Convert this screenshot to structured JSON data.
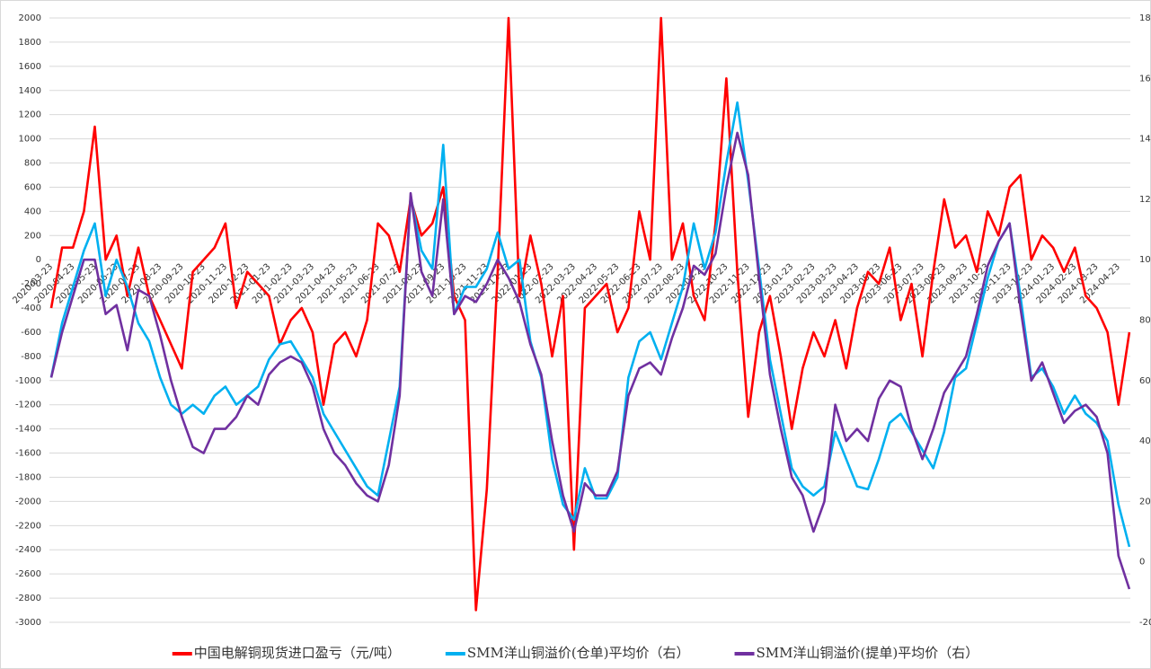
{
  "chart_data": {
    "type": "line",
    "categories": [
      "2020-03-23",
      null,
      "2020-04-23",
      null,
      "2020-05-23",
      null,
      "2020-06-23",
      null,
      "2020-07-23",
      null,
      "2020-08-23",
      null,
      "2020-09-23",
      null,
      "2020-10-23",
      null,
      "2020-11-23",
      null,
      "2020-12-23",
      null,
      "2021-01-23",
      null,
      "2021-02-23",
      null,
      "2021-03-23",
      null,
      "2021-04-23",
      null,
      "2021-05-23",
      null,
      "2021-06-23",
      null,
      "2021-07-23",
      null,
      "2021-08-23",
      null,
      "2021-09-23",
      null,
      "2021-10-23",
      null,
      "2021-11-23",
      null,
      "2021-12-23",
      null,
      "2022-01-23",
      null,
      "2022-02-23",
      null,
      "2022-03-23",
      null,
      "2022-04-23",
      null,
      "2022-05-23",
      null,
      "2022-06-23",
      null,
      "2022-07-23",
      null,
      "2022-08-23",
      null,
      "2022-09-23",
      null,
      "2022-10-23",
      null,
      "2022-11-23",
      null,
      "2022-12-23",
      null,
      "2023-01-23",
      null,
      "2023-02-23",
      null,
      "2023-03-23",
      null,
      "2023-04-23",
      null,
      "2023-05-23",
      null,
      "2023-06-23",
      null,
      "2023-07-23",
      null,
      "2023-08-23",
      null,
      "2023-09-23",
      null,
      "2023-10-23",
      null,
      "2023-11-23",
      null,
      "2023-12-23",
      null,
      "2024-01-23",
      null,
      "2024-02-23",
      null,
      "2024-03-23",
      null,
      "2024-04-23",
      null
    ],
    "series": [
      {
        "name": "中国电解铜现货进口盈亏（元/吨）",
        "color": "#ff0000",
        "axis": "y",
        "values": [
          -400,
          100,
          100,
          400,
          1100,
          0,
          200,
          -300,
          100,
          -300,
          -500,
          -700,
          -900,
          -100,
          0,
          100,
          300,
          -400,
          -100,
          -200,
          -300,
          -700,
          -500,
          -400,
          -600,
          -1200,
          -700,
          -600,
          -800,
          -500,
          300,
          200,
          -100,
          500,
          200,
          300,
          600,
          -300,
          -500,
          -2900,
          -1900,
          -100,
          2000,
          -300,
          200,
          -200,
          -800,
          -300,
          -2400,
          -400,
          -300,
          -200,
          -600,
          -400,
          400,
          0,
          2000,
          0,
          300,
          -300,
          -500,
          300,
          1500,
          -100,
          -1300,
          -600,
          -300,
          -800,
          -1400,
          -900,
          -600,
          -800,
          -500,
          -900,
          -400,
          -100,
          -200,
          100,
          -500,
          -200,
          -800,
          -100,
          500,
          100,
          200,
          -100,
          400,
          200,
          600,
          700,
          0,
          200,
          100,
          -100,
          100,
          -300,
          -400,
          -600,
          -1200,
          -600
        ]
      },
      {
        "name": "SMM洋山铜溢价(仓单)平均价（右）",
        "color": "#00b0f0",
        "axis": "y2",
        "values": [
          61,
          79,
          91,
          103,
          112,
          88,
          100,
          91,
          79,
          73,
          61,
          52,
          49,
          52,
          49,
          55,
          58,
          52,
          55,
          58,
          67,
          72,
          73,
          67,
          61,
          49,
          43,
          37,
          31,
          25,
          22,
          40,
          58,
          121,
          103,
          97,
          138,
          82,
          91,
          91,
          97,
          109,
          97,
          100,
          73,
          61,
          34,
          19,
          14,
          31,
          21,
          21,
          28,
          61,
          73,
          76,
          67,
          79,
          91,
          112,
          97,
          109,
          132,
          152,
          126,
          97,
          67,
          49,
          31,
          25,
          22,
          25,
          43,
          34,
          25,
          24,
          34,
          46,
          49,
          43,
          37,
          31,
          43,
          61,
          64,
          79,
          94,
          106,
          112,
          88,
          61,
          64,
          58,
          49,
          55,
          49,
          46,
          40,
          19,
          5
        ]
      },
      {
        "name": "SMM洋山铜溢价(提单)平均价（右）",
        "color": "#7030a0",
        "axis": "y2",
        "values": [
          61,
          76,
          88,
          100,
          100,
          82,
          85,
          70,
          90,
          88,
          75,
          60,
          48,
          38,
          36,
          44,
          44,
          48,
          55,
          52,
          62,
          66,
          68,
          66,
          58,
          44,
          36,
          32,
          26,
          22,
          20,
          32,
          55,
          122,
          96,
          88,
          120,
          82,
          88,
          86,
          92,
          100,
          94,
          86,
          72,
          62,
          40,
          22,
          10,
          26,
          22,
          22,
          30,
          55,
          64,
          66,
          62,
          74,
          84,
          98,
          95,
          102,
          124,
          142,
          128,
          94,
          62,
          44,
          28,
          22,
          10,
          20,
          52,
          40,
          44,
          40,
          54,
          60,
          58,
          44,
          34,
          44,
          56,
          62,
          68,
          82,
          98,
          106,
          112,
          84,
          60,
          66,
          56,
          46,
          50,
          52,
          48,
          36,
          2,
          -9
        ]
      }
    ],
    "ylim": [
      -3000,
      2000
    ],
    "yticks": [
      -3000,
      -2800,
      -2600,
      -2400,
      -2200,
      -2000,
      -1800,
      -1600,
      -1400,
      -1200,
      -1000,
      -800,
      -600,
      -400,
      -200,
      0,
      200,
      400,
      600,
      800,
      1000,
      1200,
      1400,
      1600,
      1800,
      2000
    ],
    "y2lim": [
      -20,
      180
    ],
    "y2ticks": [
      -20,
      0,
      20,
      40,
      60,
      80,
      100,
      120,
      140,
      160,
      180
    ],
    "grid": true,
    "legend": "bottom"
  }
}
